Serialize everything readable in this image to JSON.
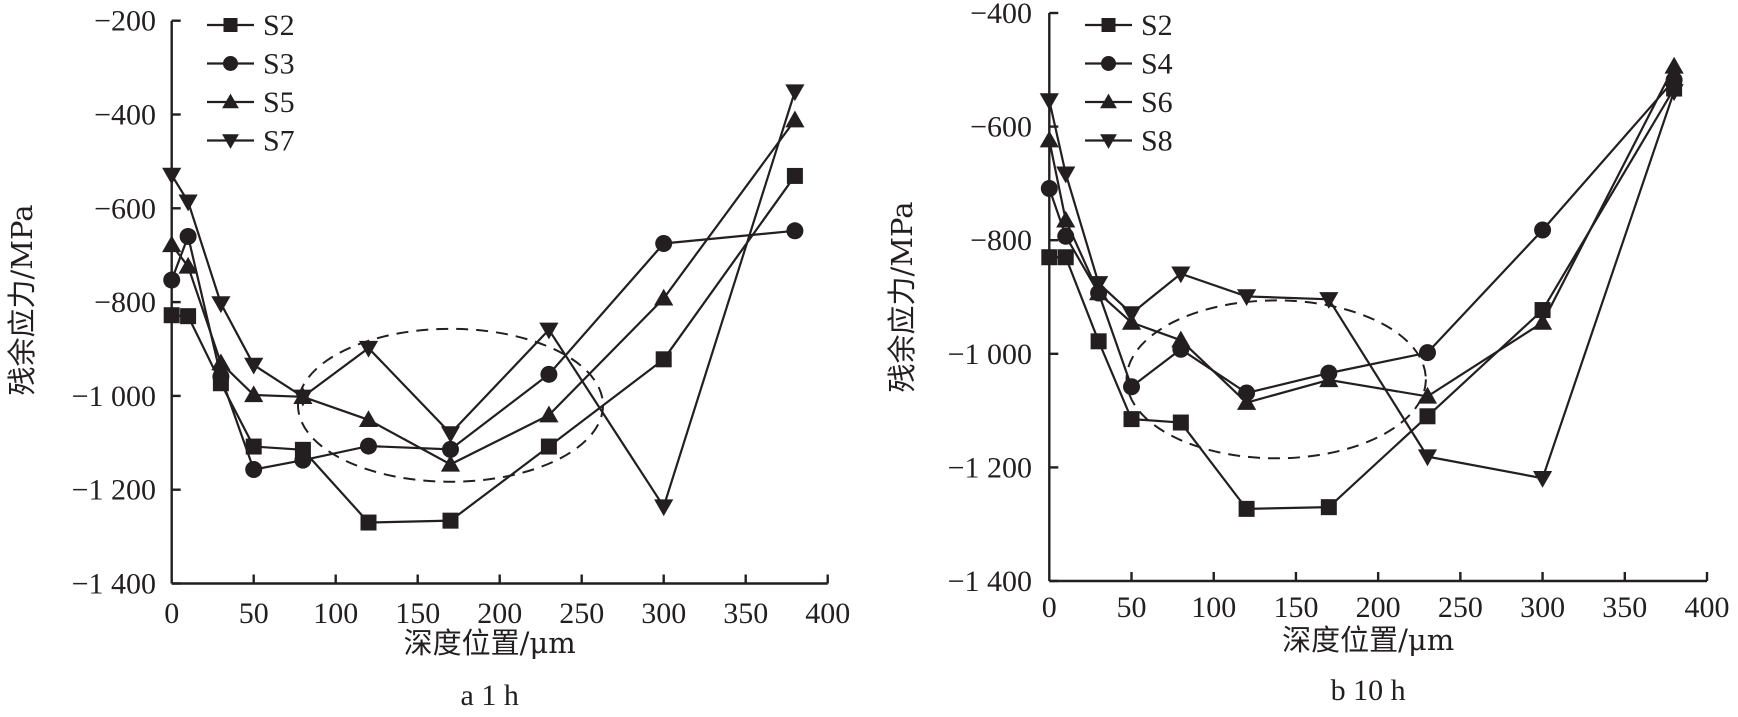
{
  "colors": {
    "ink": "#231f20",
    "background": "#ffffff"
  },
  "chart_data": [
    {
      "type": "line",
      "caption": "a 1 h",
      "xlabel": "深度位置/μm",
      "ylabel": "残余应力/MPa",
      "xlim": [
        0,
        400
      ],
      "ylim": [
        -1400,
        -200
      ],
      "xticks": [
        0,
        50,
        100,
        150,
        200,
        250,
        300,
        350,
        400
      ],
      "xtick_labels": [
        "0",
        "50",
        "100",
        "150",
        "200",
        "250",
        "300",
        "350",
        "400"
      ],
      "yticks": [
        -200,
        -400,
        -600,
        -800,
        -1000,
        -1200,
        -1400
      ],
      "ytick_labels": [
        "−200",
        "−400",
        "−600",
        "−800",
        "−1 000",
        "−1 200",
        "−1 400"
      ],
      "grid": false,
      "legend_position": "top-left",
      "annotation": "dashed ellipse around 80–260 μm",
      "highlight_ellipse": {
        "cx": 170,
        "cy": -1020,
        "rx": 93,
        "ry": 326
      },
      "x": [
        0,
        10,
        30,
        50,
        80,
        120,
        170,
        230,
        300,
        380
      ],
      "series": [
        {
          "name": "S2",
          "marker": "square",
          "values": [
            -828,
            -830,
            -973,
            -1108,
            -1115,
            -1270,
            -1266,
            -1108,
            -922,
            -531
          ]
        },
        {
          "name": "S3",
          "marker": "circle",
          "values": [
            -753,
            -660,
            -959,
            -1157,
            -1137,
            -1107,
            -1114,
            -954,
            -675,
            -648
          ]
        },
        {
          "name": "S5",
          "marker": "triangle-up",
          "values": [
            -678,
            -724,
            -930,
            -998,
            -1002,
            -1051,
            -1146,
            -1041,
            -792,
            -412
          ]
        },
        {
          "name": "S7",
          "marker": "triangle-down",
          "values": [
            -529,
            -586,
            -803,
            -934,
            -1002,
            -898,
            -1080,
            -859,
            -1236,
            -351
          ]
        }
      ]
    },
    {
      "type": "line",
      "caption": "b 10 h",
      "xlabel": "深度位置/μm",
      "ylabel": "残余应力/MPa",
      "xlim": [
        0,
        400
      ],
      "ylim": [
        -1400,
        -400
      ],
      "xticks": [
        0,
        50,
        100,
        150,
        200,
        250,
        300,
        350,
        400
      ],
      "xtick_labels": [
        "0",
        "50",
        "100",
        "150",
        "200",
        "250",
        "300",
        "350",
        "400"
      ],
      "yticks": [
        -400,
        -600,
        -800,
        -1000,
        -1200,
        -1400
      ],
      "ytick_labels": [
        "−400",
        "−600",
        "−800",
        "−1 000",
        "−1 200",
        "−1 400"
      ],
      "grid": false,
      "legend_position": "top-left",
      "annotation": "dashed ellipse around 50–230 μm",
      "highlight_ellipse": {
        "cx": 138,
        "cy": -1045,
        "rx": 91,
        "ry": 278
      },
      "x": [
        0,
        10,
        30,
        50,
        80,
        120,
        170,
        230,
        300,
        380
      ],
      "series": [
        {
          "name": "S2",
          "marker": "square",
          "values": [
            -830,
            -830,
            -978,
            -1115,
            -1121,
            -1273,
            -1270,
            -1110,
            -923,
            -533
          ]
        },
        {
          "name": "S4",
          "marker": "circle",
          "values": [
            -709,
            -793,
            -893,
            -1058,
            -992,
            -1069,
            -1034,
            -998,
            -782,
            -518
          ]
        },
        {
          "name": "S6",
          "marker": "triangle-up",
          "values": [
            -624,
            -765,
            -893,
            -945,
            -976,
            -1086,
            -1046,
            -1075,
            -945,
            -494
          ]
        },
        {
          "name": "S8",
          "marker": "triangle-down",
          "values": [
            -554,
            -683,
            -876,
            -929,
            -859,
            -899,
            -904,
            -1181,
            -1219,
            -538
          ]
        }
      ]
    }
  ]
}
